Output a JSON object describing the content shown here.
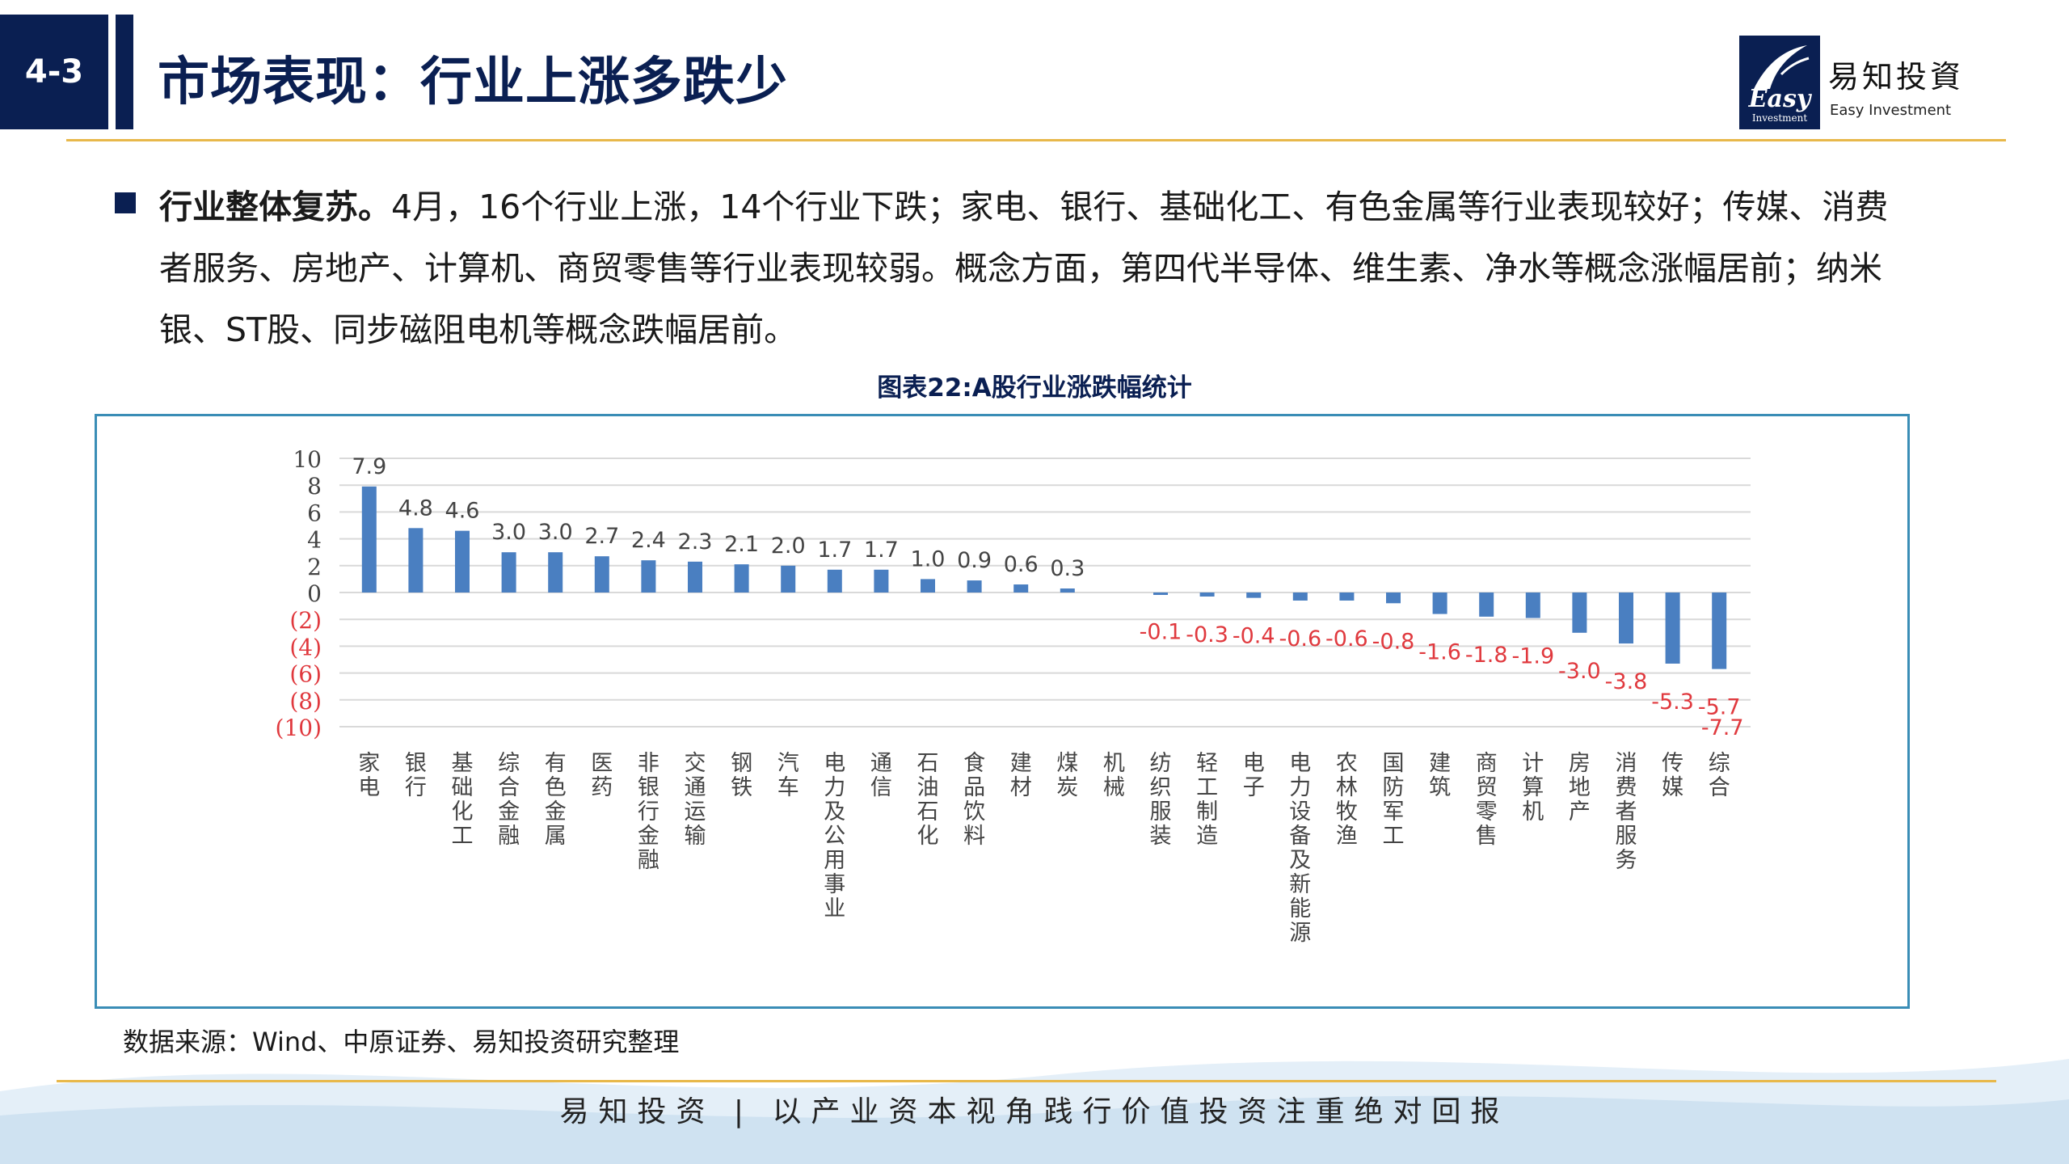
{
  "header": {
    "section": "4-3",
    "title": "市场表现：行业上涨多跌少",
    "brand_cn": "易知投資",
    "brand_en": "Easy Investment",
    "logo_word": "Easy",
    "logo_sub": "Investment"
  },
  "bullet": {
    "lead": "行业整体复苏。",
    "body": "4月，16个行业上涨，14个行业下跌；家电、银行、基础化工、有色金属等行业表现较好；传媒、消费者服务、房地产、计算机、商贸零售等行业表现较弱。概念方面，第四代半导体、维生素、净水等概念涨幅居前；纳米银、ST股、同步磁阻电机等概念跌幅居前。"
  },
  "chart_data": {
    "type": "bar",
    "title": "图表22:A股行业涨跌幅统计",
    "categories": [
      "家电",
      "银行",
      "基础化工",
      "综合金融",
      "有色金属",
      "医药",
      "非银行金融",
      "交通运输",
      "钢铁",
      "汽车",
      "电力及公用事业",
      "通信",
      "石油石化",
      "食品饮料",
      "建材",
      "煤炭",
      "机械",
      "纺织服装",
      "轻工制造",
      "电子",
      "电力设备及新能源",
      "农林牧渔",
      "国防军工",
      "建筑",
      "商贸零售",
      "计算机",
      "房地产",
      "消费者服务",
      "传媒",
      "综合"
    ],
    "values": [
      7.9,
      4.8,
      4.6,
      3.0,
      3.0,
      2.7,
      2.4,
      2.3,
      2.1,
      2.0,
      1.7,
      1.7,
      1.0,
      0.9,
      0.6,
      0.3,
      0.0,
      -0.1,
      -0.3,
      -0.4,
      -0.6,
      -0.6,
      -0.8,
      -1.6,
      -1.8,
      -1.9,
      -3.0,
      -3.8,
      -5.3,
      -5.7
    ],
    "data_labels": [
      "7.9",
      "4.8",
      "4.6",
      "3.0",
      "3.0",
      "2.7",
      "2.4",
      "2.3",
      "2.1",
      "2.0",
      "1.7",
      "1.7",
      "1.0",
      "0.9",
      "0.6",
      "0.3",
      "",
      "-0.1",
      "-0.3",
      "-0.4",
      "-0.6",
      "-0.6",
      "-0.8",
      "-1.6",
      "-1.8",
      "-1.9",
      "-3.0",
      "-3.8",
      "-5.3",
      "-5.7"
    ],
    "extra_label": "-7.7",
    "y_ticks": [
      10,
      8,
      6,
      4,
      2,
      0,
      -2,
      -4,
      -6,
      -8,
      -10
    ],
    "y_tick_labels": [
      "10",
      "8",
      "6",
      "4",
      "2",
      "0",
      "(2)",
      "(4)",
      "(6)",
      "(8)",
      "(10)"
    ],
    "ylim": [
      -10,
      10
    ],
    "grid": true,
    "bar_color": "#4a7fc1",
    "positive_label_color": "#444444",
    "negative_label_color": "#e0393e"
  },
  "source": "数据来源：Wind、中原证券、易知投资研究整理",
  "footer": {
    "slogan": "易知投资 | 以产业资本视角践行价值投资注重绝对回报"
  }
}
